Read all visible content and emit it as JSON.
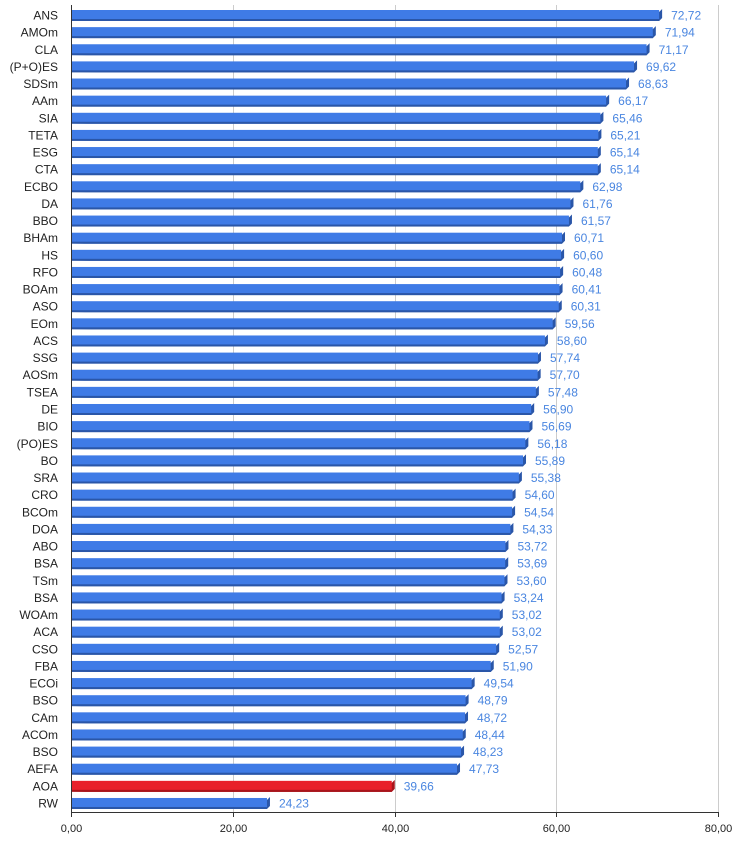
{
  "chart_data": {
    "type": "bar",
    "orientation": "horizontal",
    "categories": [
      "ANS",
      "AMOm",
      "CLA",
      "(P+O)ES",
      "SDSm",
      "AAm",
      "SIA",
      "TETA",
      "ESG",
      "CTA",
      "ECBO",
      "DA",
      "BBO",
      "BHAm",
      "HS",
      "RFO",
      "BOAm",
      "ASO",
      "EOm",
      "ACS",
      "SSG",
      "AOSm",
      "TSEA",
      "DE",
      "BIO",
      "(PO)ES",
      "BO",
      "SRA",
      "CRO",
      "BCOm",
      "DOA",
      "ABO",
      "BSA",
      "TSm",
      "BSA",
      "WOAm",
      "ACA",
      "CSO",
      "FBA",
      "ECOi",
      "BSO",
      "CAm",
      "ACOm",
      "BSO",
      "AEFA",
      "AOA",
      "RW"
    ],
    "values": [
      72.72,
      71.94,
      71.17,
      69.62,
      68.63,
      66.17,
      65.46,
      65.21,
      65.14,
      65.14,
      62.98,
      61.76,
      61.57,
      60.71,
      60.6,
      60.48,
      60.41,
      60.31,
      59.56,
      58.6,
      57.74,
      57.7,
      57.48,
      56.9,
      56.69,
      56.18,
      55.89,
      55.38,
      54.6,
      54.54,
      54.33,
      53.72,
      53.69,
      53.6,
      53.24,
      53.02,
      53.02,
      52.57,
      51.9,
      49.54,
      48.79,
      48.72,
      48.44,
      48.23,
      47.73,
      39.66,
      24.23
    ],
    "value_labels": [
      "72,72",
      "71,94",
      "71,17",
      "69,62",
      "68,63",
      "66,17",
      "65,46",
      "65,21",
      "65,14",
      "65,14",
      "62,98",
      "61,76",
      "61,57",
      "60,71",
      "60,60",
      "60,48",
      "60,41",
      "60,31",
      "59,56",
      "58,60",
      "57,74",
      "57,70",
      "57,48",
      "56,90",
      "56,69",
      "56,18",
      "55,89",
      "55,38",
      "54,60",
      "54,54",
      "54,33",
      "53,72",
      "53,69",
      "53,60",
      "53,24",
      "53,02",
      "53,02",
      "52,57",
      "51,90",
      "49,54",
      "48,79",
      "48,72",
      "48,44",
      "48,23",
      "47,73",
      "39,66",
      "24,23"
    ],
    "highlight_category": "AOA",
    "xlim": [
      0,
      80
    ],
    "x_ticks": [
      "0,00",
      "20,00",
      "40,00",
      "60,00",
      "80,00"
    ],
    "x_tick_values": [
      0,
      20,
      40,
      60,
      80
    ],
    "title": "",
    "xlabel": "",
    "ylabel": "",
    "grid": "vertical",
    "legend": "none",
    "colors": {
      "bar": "#3f7be6",
      "bar_shadow": "#2a56a8",
      "highlight": "#e8202a",
      "highlight_shadow": "#a8141b",
      "value_label": "#4a86e0",
      "grid": "#cccccc",
      "axis": "#333333"
    }
  }
}
